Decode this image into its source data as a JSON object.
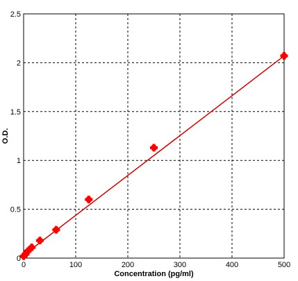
{
  "chart_data": {
    "type": "scatter",
    "title": "",
    "xlabel": "Concentration (pg/ml)",
    "ylabel": "O.D.",
    "xlim": [
      0,
      500
    ],
    "ylim": [
      0,
      2.5
    ],
    "xticks": [
      0,
      100,
      200,
      300,
      400,
      500
    ],
    "yticks": [
      0,
      0.5,
      1,
      1.5,
      2,
      2.5
    ],
    "xtick_labels": [
      "0",
      "100",
      "200",
      "300",
      "400",
      "500"
    ],
    "ytick_labels": [
      "0",
      "0.5",
      "1",
      "1.5",
      "2",
      "2.5"
    ],
    "grid": true,
    "series": [
      {
        "x": [
          0,
          3.9,
          7.8,
          15.6,
          31.25,
          62.5,
          125,
          250,
          500
        ],
        "y": [
          0.02,
          0.04,
          0.07,
          0.11,
          0.18,
          0.29,
          0.6,
          1.13,
          2.07
        ],
        "color": "#ff0000"
      }
    ],
    "fit_line": {
      "x": [
        0,
        500
      ],
      "y": [
        0.03,
        2.07
      ],
      "color": "#cc0000"
    }
  }
}
